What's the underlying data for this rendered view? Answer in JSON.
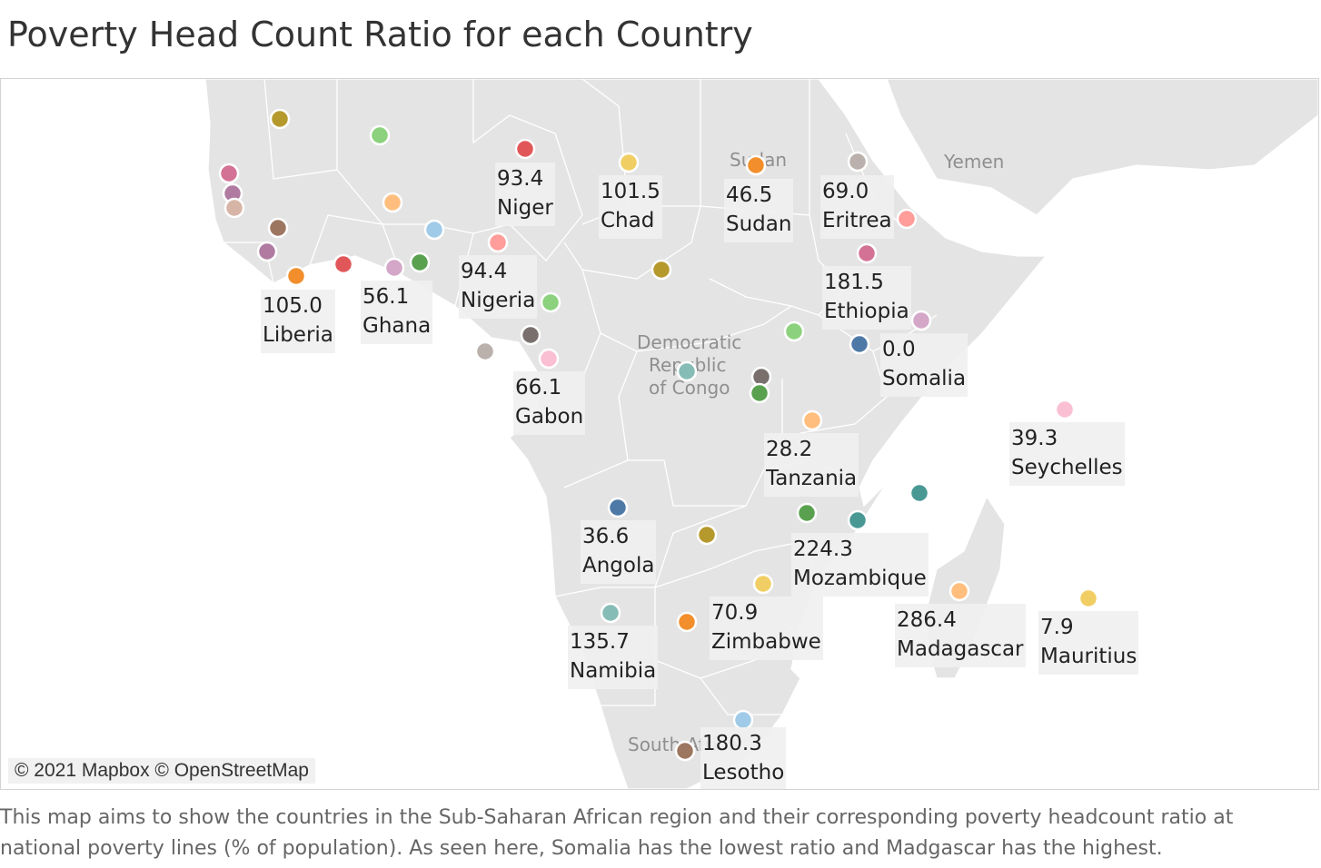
{
  "title": "Poverty Head Count Ratio for each Country",
  "description": "This map aims to show the countries in the Sub-Saharan African region and their corresponding poverty headcount ratio at national poverty lines (% of population). As seen here, Somalia has the lowest ratio and Madgascar has the highest.",
  "attribution": "© 2021 Mapbox © OpenStreetMap",
  "map": {
    "land_color": "#e4e4e4",
    "border_color": "#ffffff",
    "place_names": [
      "Yemen",
      "Sudan",
      "Democratic",
      "Republic",
      "of Congo",
      "South Africa"
    ]
  },
  "labeled_countries": [
    {
      "name": "Niger",
      "value": "93.4",
      "color": "#e15759"
    },
    {
      "name": "Chad",
      "value": "101.5",
      "color": "#f1ce63"
    },
    {
      "name": "Sudan",
      "value": "46.5",
      "color": "#f28e2b"
    },
    {
      "name": "Eritrea",
      "value": "69.0",
      "color": "#bab0ac"
    },
    {
      "name": "Liberia",
      "value": "105.0",
      "color": "#f28e2b"
    },
    {
      "name": "Ghana",
      "value": "56.1",
      "color": "#d4a6c8"
    },
    {
      "name": "Nigeria",
      "value": "94.4",
      "color": "#ff9d9a"
    },
    {
      "name": "Ethiopia",
      "value": "181.5",
      "color": "#d37295"
    },
    {
      "name": "Somalia",
      "value": "0.0",
      "color": "#4e79a7"
    },
    {
      "name": "Gabon",
      "value": "66.1",
      "color": "#fabfd2"
    },
    {
      "name": "Seychelles",
      "value": "39.3",
      "color": "#fabfd2"
    },
    {
      "name": "Tanzania",
      "value": "28.2",
      "color": "#ffbe7d"
    },
    {
      "name": "Angola",
      "value": "36.6",
      "color": "#4e79a7"
    },
    {
      "name": "Mozambique",
      "value": "224.3",
      "color": "#59a14f"
    },
    {
      "name": "Zimbabwe",
      "value": "70.9",
      "color": "#f1ce63"
    },
    {
      "name": "Madagascar",
      "value": "286.4",
      "color": "#ffbe7d"
    },
    {
      "name": "Mauritius",
      "value": "7.9",
      "color": "#f1ce63"
    },
    {
      "name": "Namibia",
      "value": "135.7",
      "color": "#86bcb6"
    },
    {
      "name": "Lesotho",
      "value": "180.3",
      "color": "#9d7660"
    }
  ],
  "unlabeled_marker_colors": [
    "#b6992d",
    "#8cd17d",
    "#d37295",
    "#b07aa1",
    "#d7b5a6",
    "#ffbe7d",
    "#a0cbe8",
    "#9d7660",
    "#b07aa1",
    "#e15759",
    "#59a14f",
    "#b6992d",
    "#8cd17d",
    "#79706e",
    "#bab0ac",
    "#ff9d9a",
    "#d4a6c8",
    "#8cd17d",
    "#86bcb6",
    "#79706e",
    "#59a14f",
    "#499894",
    "#499894",
    "#b6992d",
    "#f28e2b",
    "#a0cbe8"
  ]
}
